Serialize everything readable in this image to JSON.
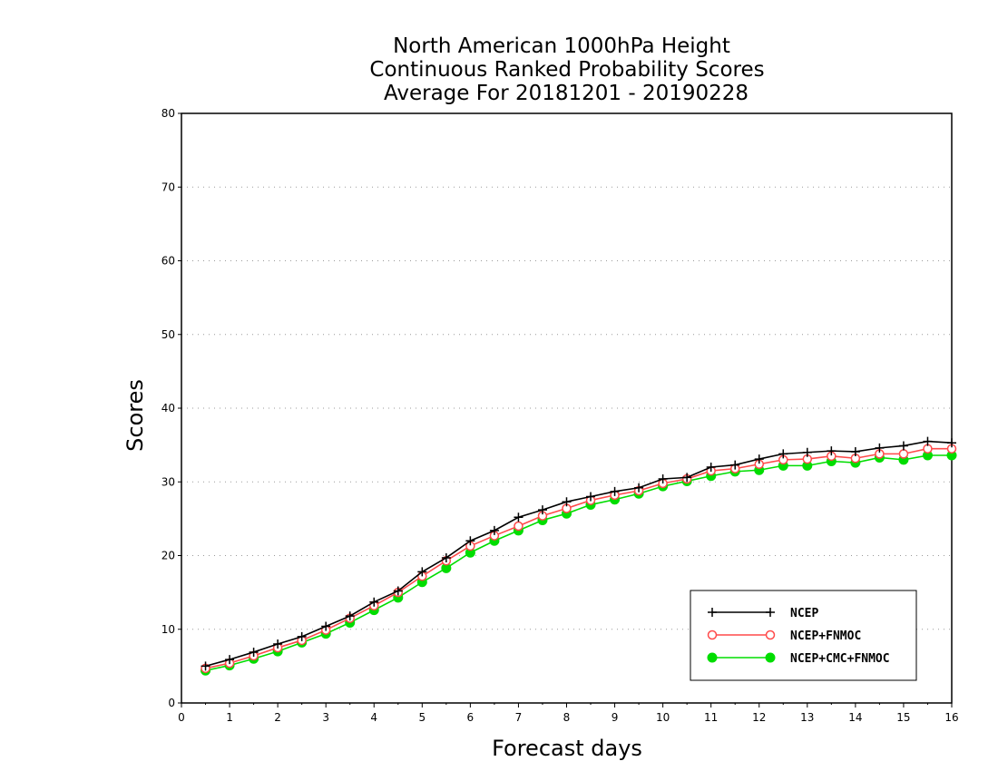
{
  "chart_data": {
    "type": "line",
    "title": [
      "North American 1000hPa Height",
      "Continuous Ranked Probability Scores",
      "Average For 20181201 - 20190228"
    ],
    "xlabel": "Forecast days",
    "ylabel": "Scores",
    "xlim": [
      0,
      16
    ],
    "ylim": [
      0,
      80
    ],
    "xticks": [
      0,
      1,
      2,
      3,
      4,
      5,
      6,
      7,
      8,
      9,
      10,
      11,
      12,
      13,
      14,
      15,
      16
    ],
    "yticks": [
      0,
      10,
      20,
      30,
      40,
      50,
      60,
      70,
      80
    ],
    "grid": "horizontal dotted",
    "legend_position": "bottom-right",
    "x": [
      0.5,
      1,
      1.5,
      2,
      2.5,
      3,
      3.5,
      4,
      4.5,
      5,
      5.5,
      6,
      6.5,
      7,
      7.5,
      8,
      8.5,
      9,
      9.5,
      10,
      10.5,
      11,
      11.5,
      12,
      12.5,
      13,
      13.5,
      14,
      14.5,
      15,
      15.5,
      16
    ],
    "series": [
      {
        "name": "NCEP",
        "color": "#000000",
        "marker": "plus",
        "values": [
          5.0,
          5.9,
          6.9,
          8.0,
          9.0,
          10.4,
          11.8,
          13.7,
          15.2,
          17.8,
          19.7,
          22.0,
          23.4,
          25.2,
          26.2,
          27.3,
          28.0,
          28.7,
          29.2,
          30.4,
          30.6,
          32.0,
          32.3,
          33.1,
          33.8,
          34.0,
          34.2,
          34.1,
          34.6,
          34.9,
          35.5,
          35.3
        ]
      },
      {
        "name": "NCEP+FNMOC",
        "color": "#ff4a4a",
        "marker": "open-circle",
        "values": [
          4.7,
          5.4,
          6.4,
          7.5,
          8.5,
          9.9,
          11.5,
          13.2,
          15.0,
          17.2,
          19.3,
          21.3,
          22.7,
          24.0,
          25.4,
          26.4,
          27.5,
          28.2,
          28.8,
          29.8,
          30.4,
          31.5,
          31.8,
          32.4,
          33.0,
          33.1,
          33.5,
          33.2,
          33.8,
          33.8,
          34.5,
          34.5
        ]
      },
      {
        "name": "NCEP+CMC+FNMOC",
        "color": "#00dd00",
        "marker": "filled-circle",
        "values": [
          4.4,
          5.1,
          6.0,
          7.0,
          8.2,
          9.4,
          10.9,
          12.6,
          14.3,
          16.4,
          18.3,
          20.4,
          22.0,
          23.4,
          24.8,
          25.7,
          26.9,
          27.6,
          28.4,
          29.4,
          30.1,
          30.8,
          31.4,
          31.6,
          32.2,
          32.2,
          32.8,
          32.6,
          33.3,
          33.0,
          33.6,
          33.6
        ]
      }
    ]
  }
}
